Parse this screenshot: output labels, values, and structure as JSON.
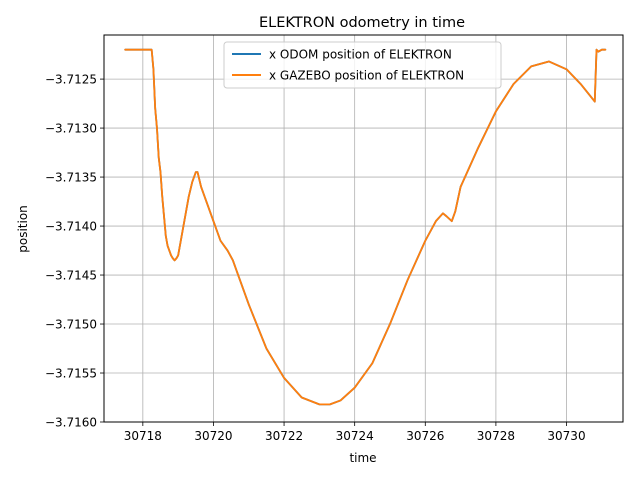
{
  "chart_data": {
    "type": "line",
    "title": "ELEKTRON odometry in time",
    "xlabel": "time",
    "ylabel": "position",
    "xlim": [
      30716.9,
      30731.6
    ],
    "ylim": [
      -3.716,
      -3.71205
    ],
    "xticks": [
      30718,
      30720,
      30722,
      30724,
      30726,
      30728,
      30730
    ],
    "xtick_labels": [
      "30718",
      "30720",
      "30722",
      "30724",
      "30726",
      "30728",
      "30730"
    ],
    "yticks": [
      -3.7125,
      -3.713,
      -3.7135,
      -3.714,
      -3.7145,
      -3.715,
      -3.7155,
      -3.716
    ],
    "ytick_labels": [
      "−3.7125",
      "−3.7130",
      "−3.7135",
      "−3.7140",
      "−3.7145",
      "−3.7150",
      "−3.7155",
      "−3.7160"
    ],
    "grid": true,
    "legend_position": "top-center",
    "series": [
      {
        "name": "x ODOM position of ELEKTRON",
        "color": "#1f77b4",
        "x": [
          30717.5,
          30718.0,
          30718.25,
          30718.3,
          30718.35,
          30718.4,
          30718.45,
          30718.5,
          30718.55,
          30718.6,
          30718.65,
          30718.7,
          30718.75,
          30718.8,
          30718.85,
          30718.9,
          30718.95,
          30719.0,
          30719.1,
          30719.2,
          30719.3,
          30719.4,
          30719.5,
          30719.55,
          30719.65,
          30719.8,
          30720.0,
          30720.2,
          30720.4,
          30720.55,
          30720.65,
          30721.0,
          30721.5,
          30722.0,
          30722.5,
          30723.0,
          30723.3,
          30723.6,
          30724.0,
          30724.5,
          30725.0,
          30725.5,
          30726.0,
          30726.3,
          30726.5,
          30726.6,
          30726.75,
          30726.85,
          30727.0,
          30727.5,
          30728.0,
          30728.5,
          30729.0,
          30729.5,
          30730.0,
          30730.4,
          30730.8,
          30730.85,
          30730.9,
          30731.0,
          30731.1
        ],
        "y": [
          -3.7122,
          -3.7122,
          -3.7122,
          -3.7124,
          -3.7128,
          -3.713,
          -3.7133,
          -3.71345,
          -3.7137,
          -3.7139,
          -3.7141,
          -3.7142,
          -3.71425,
          -3.7143,
          -3.71433,
          -3.71435,
          -3.71433,
          -3.7143,
          -3.7141,
          -3.7139,
          -3.7137,
          -3.71355,
          -3.71345,
          -3.71345,
          -3.7136,
          -3.71375,
          -3.71395,
          -3.71415,
          -3.71425,
          -3.71435,
          -3.71445,
          -3.7148,
          -3.71525,
          -3.71555,
          -3.71575,
          -3.71582,
          -3.71582,
          -3.71578,
          -3.71565,
          -3.7154,
          -3.715,
          -3.71455,
          -3.71415,
          -3.71395,
          -3.71387,
          -3.7139,
          -3.71395,
          -3.71385,
          -3.7136,
          -3.7132,
          -3.71283,
          -3.71255,
          -3.71237,
          -3.71232,
          -3.7124,
          -3.71255,
          -3.71273,
          -3.7122,
          -3.71222,
          -3.7122,
          -3.7122
        ]
      },
      {
        "name": "x GAZEBO position of ELEKTRON",
        "color": "#ff7f0e",
        "x": [
          30717.5,
          30718.0,
          30718.25,
          30718.3,
          30718.35,
          30718.4,
          30718.45,
          30718.5,
          30718.55,
          30718.6,
          30718.65,
          30718.7,
          30718.75,
          30718.8,
          30718.85,
          30718.9,
          30718.95,
          30719.0,
          30719.1,
          30719.2,
          30719.3,
          30719.4,
          30719.5,
          30719.55,
          30719.65,
          30719.8,
          30720.0,
          30720.2,
          30720.4,
          30720.55,
          30720.65,
          30721.0,
          30721.5,
          30722.0,
          30722.5,
          30723.0,
          30723.3,
          30723.6,
          30724.0,
          30724.5,
          30725.0,
          30725.5,
          30726.0,
          30726.3,
          30726.5,
          30726.6,
          30726.75,
          30726.85,
          30727.0,
          30727.5,
          30728.0,
          30728.5,
          30729.0,
          30729.5,
          30730.0,
          30730.4,
          30730.8,
          30730.85,
          30730.9,
          30731.0,
          30731.1
        ],
        "y": [
          -3.7122,
          -3.7122,
          -3.7122,
          -3.7124,
          -3.7128,
          -3.713,
          -3.7133,
          -3.71345,
          -3.7137,
          -3.7139,
          -3.7141,
          -3.7142,
          -3.71425,
          -3.7143,
          -3.71433,
          -3.71435,
          -3.71433,
          -3.7143,
          -3.7141,
          -3.7139,
          -3.7137,
          -3.71355,
          -3.71345,
          -3.71345,
          -3.7136,
          -3.71375,
          -3.71395,
          -3.71415,
          -3.71425,
          -3.71435,
          -3.71445,
          -3.7148,
          -3.71525,
          -3.71555,
          -3.71575,
          -3.71582,
          -3.71582,
          -3.71578,
          -3.71565,
          -3.7154,
          -3.715,
          -3.71455,
          -3.71415,
          -3.71395,
          -3.71387,
          -3.7139,
          -3.71395,
          -3.71385,
          -3.7136,
          -3.7132,
          -3.71283,
          -3.71255,
          -3.71237,
          -3.71232,
          -3.7124,
          -3.71255,
          -3.71273,
          -3.7122,
          -3.71222,
          -3.7122,
          -3.7122
        ]
      }
    ]
  }
}
